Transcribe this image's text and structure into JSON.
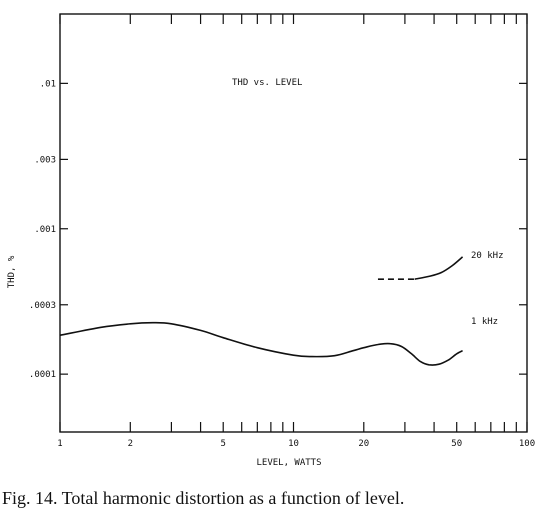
{
  "caption": "Fig. 14. Total harmonic distortion as a function of level.",
  "chart_data": {
    "type": "line",
    "title": "THD vs. LEVEL",
    "xlabel": "LEVEL, WATTS",
    "ylabel": "THD, %",
    "x_scale": "log",
    "y_scale": "log",
    "xlim": [
      1,
      100
    ],
    "ylim": [
      4e-05,
      0.03
    ],
    "x_ticks": [
      {
        "value": 1,
        "label": "1"
      },
      {
        "value": 2,
        "label": "2"
      },
      {
        "value": 5,
        "label": "5"
      },
      {
        "value": 10,
        "label": "10"
      },
      {
        "value": 20,
        "label": "20"
      },
      {
        "value": 50,
        "label": "50"
      },
      {
        "value": 100,
        "label": "100"
      }
    ],
    "y_ticks": [
      {
        "value": 0.01,
        "label": ".01"
      },
      {
        "value": 0.003,
        "label": ".003"
      },
      {
        "value": 0.001,
        "label": ".001"
      },
      {
        "value": 0.0003,
        "label": ".0003"
      },
      {
        "value": 0.0001,
        "label": ".0001"
      }
    ],
    "series": [
      {
        "name": "1 kHz",
        "style": "solid",
        "x": [
          1,
          1.5,
          2,
          2.5,
          3,
          4,
          5,
          7,
          10,
          12,
          15,
          18,
          20,
          23,
          26,
          29,
          32,
          35,
          38,
          42,
          46,
          50,
          53
        ],
        "y": [
          0.000185,
          0.00021,
          0.000222,
          0.000226,
          0.000222,
          0.0002,
          0.000178,
          0.000152,
          0.000135,
          0.000132,
          0.000134,
          0.000145,
          0.000152,
          0.00016,
          0.000162,
          0.000155,
          0.000138,
          0.000122,
          0.000116,
          0.000117,
          0.000125,
          0.000138,
          0.000145
        ]
      },
      {
        "name": "20 kHz",
        "style": "dashed-then-solid",
        "dashed_x": [
          23,
          33
        ],
        "dashed_y": [
          0.00045,
          0.00045
        ],
        "x": [
          33,
          38,
          43,
          48,
          53
        ],
        "y": [
          0.00045,
          0.00047,
          0.0005,
          0.00056,
          0.00064
        ]
      }
    ]
  }
}
